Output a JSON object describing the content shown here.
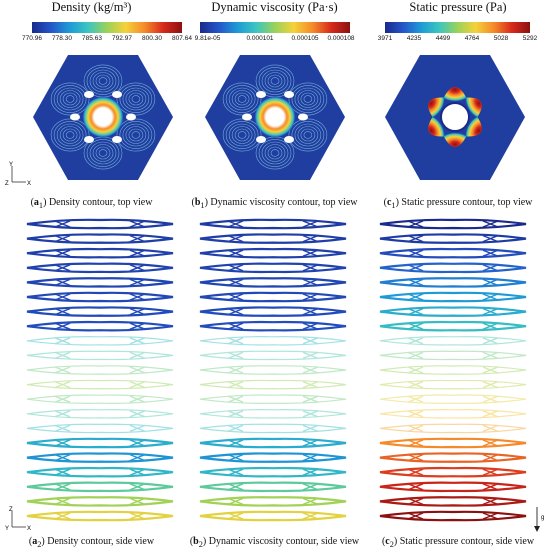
{
  "panels": [
    {
      "id": "a",
      "colorbar_title": "Density (kg/m³)",
      "ticks": [
        "770.96",
        "778.30",
        "785.63",
        "792.97",
        "800.30",
        "807.64"
      ],
      "top_caption_label": "a",
      "top_caption_sub": "1",
      "top_caption_text": "Density contour, top view",
      "side_caption_label": "a",
      "side_caption_sub": "2",
      "side_caption_text": "Density contour, side view"
    },
    {
      "id": "b",
      "colorbar_title": "Dynamic viscosity (Pa·s)",
      "ticks": [
        "9.81e-05",
        "0.000101",
        "0.000105",
        "0.000108"
      ],
      "top_caption_label": "b",
      "top_caption_sub": "1",
      "top_caption_text": "Dynamic viscosity contour, top view",
      "side_caption_label": "b",
      "side_caption_sub": "2",
      "side_caption_text": "Dynamic viscosity contour, side view"
    },
    {
      "id": "c",
      "colorbar_title": "Static pressure (Pa)",
      "ticks": [
        "3971",
        "4235",
        "4499",
        "4764",
        "5028",
        "5292"
      ],
      "top_caption_label": "c",
      "top_caption_sub": "1",
      "top_caption_text": "Static pressure contour, top view",
      "side_caption_label": "c",
      "side_caption_sub": "2",
      "side_caption_text": "Static pressure contour, side view"
    }
  ],
  "axes": {
    "top_view": {
      "vertical": "Y",
      "horizontal": "X",
      "origin": "Z"
    },
    "side_view": {
      "vertical": "Z",
      "horizontal": "X",
      "origin": "Y"
    },
    "gravity_label": "g"
  },
  "colors": {
    "colormap": [
      "#1a2a8c",
      "#2455c8",
      "#1e9ad6",
      "#3cc6c0",
      "#9ad25a",
      "#f4d23a",
      "#f58a2a",
      "#d62a1c",
      "#8c1010"
    ],
    "cavity_background": "#1f3ea0",
    "stroke_dark": "#0a1a5a"
  }
}
